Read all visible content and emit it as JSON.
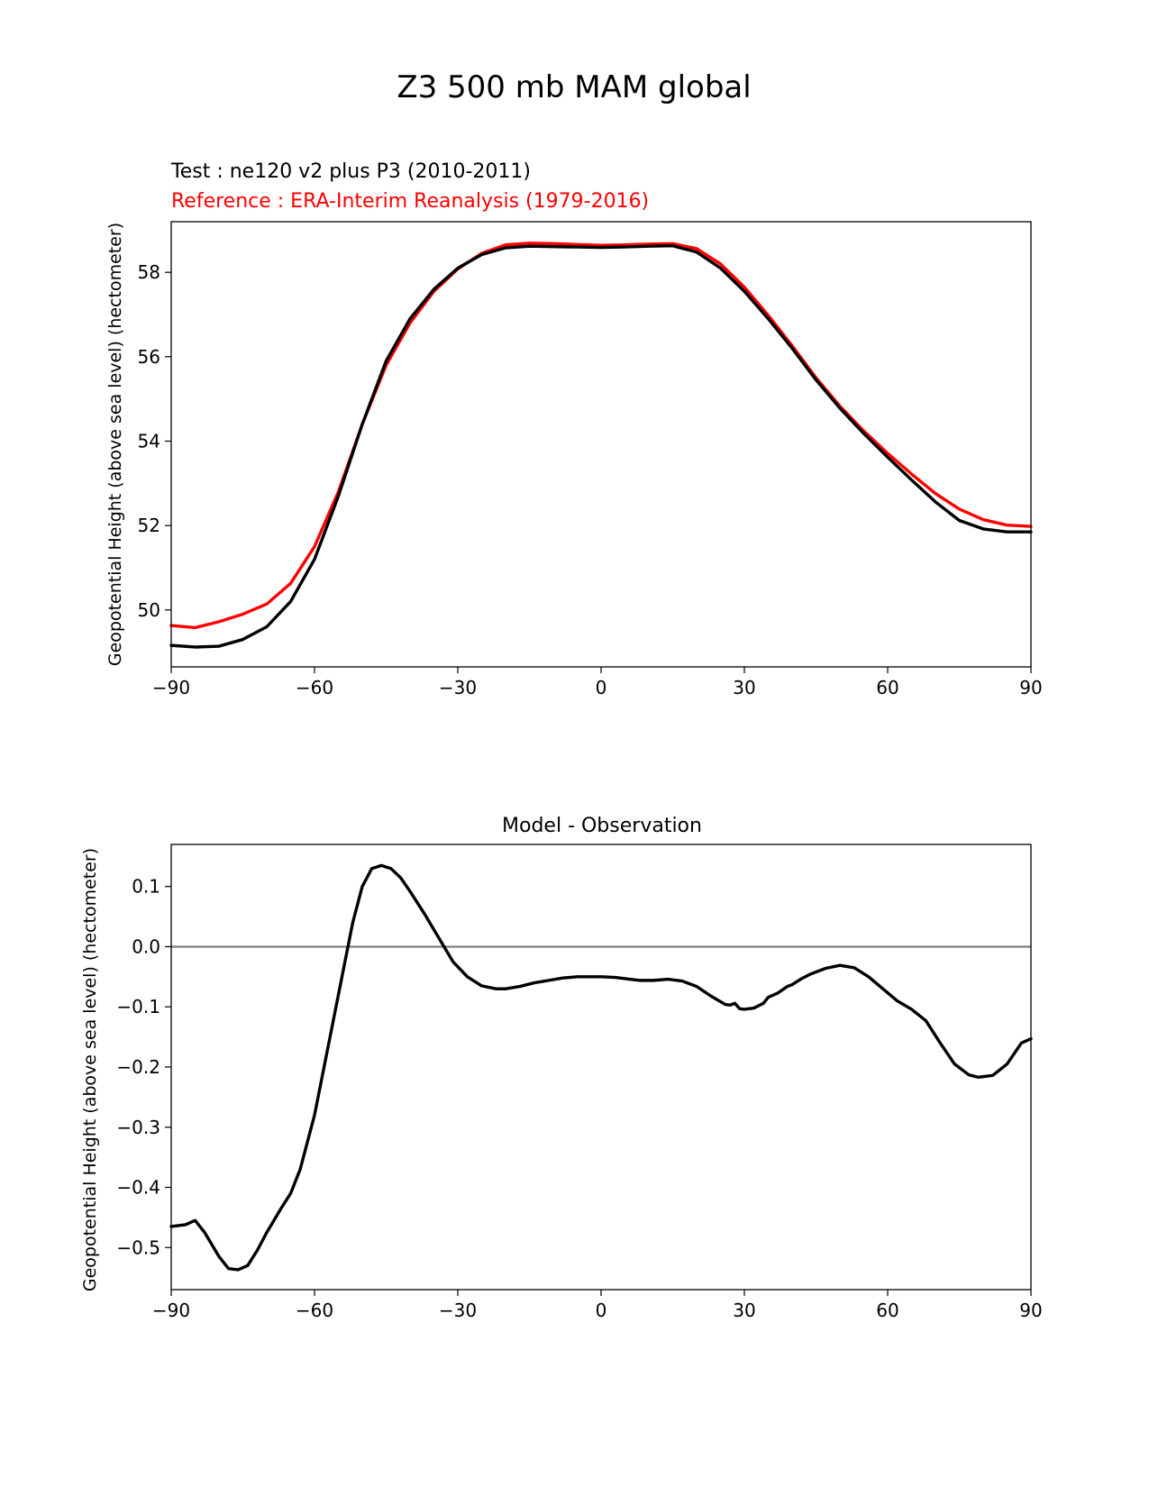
{
  "figure_title": "Z3 500 mb MAM global",
  "colors": {
    "test": "#000000",
    "reference": "#ff0000",
    "zero_line": "#808080",
    "axes": "#000000"
  },
  "chart_data": [
    {
      "type": "line",
      "test_label": "Test : ne120 v2 plus P3 (2010-2011)",
      "reference_label": "Reference : ERA-Interim Reanalysis (1979-2016)",
      "xlabel": "",
      "ylabel": "Geopotential Height (above sea level) (hectometer)",
      "xlim": [
        -90,
        90
      ],
      "ylim": [
        48.65,
        59.2
      ],
      "xticks": [
        -90,
        -60,
        -30,
        0,
        30,
        60,
        90
      ],
      "xtick_labels": [
        "−90",
        "−60",
        "−30",
        "0",
        "30",
        "60",
        "90"
      ],
      "yticks": [
        50,
        52,
        54,
        56,
        58
      ],
      "ytick_labels": [
        "50",
        "52",
        "54",
        "56",
        "58"
      ],
      "x": [
        -90,
        -85,
        -80,
        -75,
        -70,
        -65,
        -60,
        -55,
        -50,
        -45,
        -40,
        -35,
        -30,
        -25,
        -20,
        -15,
        -10,
        -5,
        0,
        5,
        10,
        15,
        20,
        25,
        30,
        35,
        40,
        45,
        50,
        55,
        60,
        65,
        70,
        75,
        80,
        85,
        90
      ],
      "series": [
        {
          "name": "Test",
          "color": "#000000",
          "values": [
            49.16,
            49.12,
            49.14,
            49.3,
            49.6,
            50.2,
            51.2,
            52.7,
            54.4,
            55.9,
            56.9,
            57.6,
            58.1,
            58.42,
            58.58,
            58.62,
            58.61,
            58.6,
            58.59,
            58.6,
            58.62,
            58.63,
            58.48,
            58.1,
            57.55,
            56.9,
            56.2,
            55.45,
            54.78,
            54.18,
            53.62,
            53.08,
            52.56,
            52.12,
            51.92,
            51.85,
            51.85
          ]
        },
        {
          "name": "Reference",
          "color": "#ff0000",
          "values": [
            49.63,
            49.58,
            49.72,
            49.9,
            50.14,
            50.63,
            51.5,
            52.8,
            54.4,
            55.8,
            56.8,
            57.55,
            58.08,
            58.45,
            58.65,
            58.69,
            58.68,
            58.66,
            58.64,
            58.65,
            58.67,
            58.68,
            58.56,
            58.2,
            57.65,
            56.98,
            56.26,
            55.5,
            54.83,
            54.24,
            53.71,
            53.22,
            52.76,
            52.39,
            52.14,
            52.01,
            51.98
          ]
        }
      ]
    },
    {
      "type": "line",
      "title": "Model - Observation",
      "xlabel": "",
      "ylabel": "Geopotential Height (above sea level) (hectometer)",
      "xlim": [
        -90,
        90
      ],
      "ylim": [
        -0.57,
        0.17
      ],
      "xticks": [
        -90,
        -60,
        -30,
        0,
        30,
        60,
        90
      ],
      "xtick_labels": [
        "−90",
        "−60",
        "−30",
        "0",
        "30",
        "60",
        "90"
      ],
      "yticks": [
        0.1,
        0.0,
        -0.1,
        -0.2,
        -0.3,
        -0.4,
        -0.5
      ],
      "ytick_labels": [
        "0.1",
        "0.0",
        "−0.1",
        "−0.2",
        "−0.3",
        "−0.4",
        "−0.5"
      ],
      "zero_line": 0,
      "x": [
        -90,
        -87,
        -85,
        -83,
        -80,
        -78,
        -76,
        -74,
        -72,
        -70,
        -67,
        -65,
        -63,
        -60,
        -57,
        -54,
        -52,
        -50,
        -48,
        -46,
        -44,
        -42,
        -40,
        -37,
        -34,
        -31,
        -28,
        -25,
        -22,
        -20,
        -17,
        -14,
        -11,
        -8,
        -5,
        -2,
        0,
        3,
        6,
        8,
        11,
        14,
        17,
        20,
        23,
        26,
        27,
        28,
        29,
        30,
        32,
        34,
        35,
        37,
        39,
        40,
        42,
        44,
        47,
        50,
        53,
        56,
        59,
        62,
        65,
        68,
        71,
        74,
        77,
        79,
        82,
        85,
        88,
        90
      ],
      "series": [
        {
          "name": "Model - Observation",
          "color": "#000000",
          "values": [
            -0.465,
            -0.462,
            -0.455,
            -0.475,
            -0.515,
            -0.535,
            -0.537,
            -0.53,
            -0.505,
            -0.475,
            -0.435,
            -0.41,
            -0.37,
            -0.28,
            -0.16,
            -0.04,
            0.04,
            0.1,
            0.13,
            0.135,
            0.13,
            0.115,
            0.092,
            0.055,
            0.015,
            -0.025,
            -0.05,
            -0.065,
            -0.07,
            -0.07,
            -0.066,
            -0.06,
            -0.056,
            -0.052,
            -0.05,
            -0.05,
            -0.05,
            -0.051,
            -0.054,
            -0.056,
            -0.056,
            -0.054,
            -0.057,
            -0.066,
            -0.082,
            -0.096,
            -0.097,
            -0.094,
            -0.103,
            -0.104,
            -0.102,
            -0.094,
            -0.084,
            -0.077,
            -0.066,
            -0.063,
            -0.053,
            -0.045,
            -0.036,
            -0.031,
            -0.035,
            -0.05,
            -0.07,
            -0.09,
            -0.104,
            -0.123,
            -0.16,
            -0.195,
            -0.213,
            -0.217,
            -0.214,
            -0.195,
            -0.16,
            -0.153
          ]
        }
      ]
    }
  ]
}
